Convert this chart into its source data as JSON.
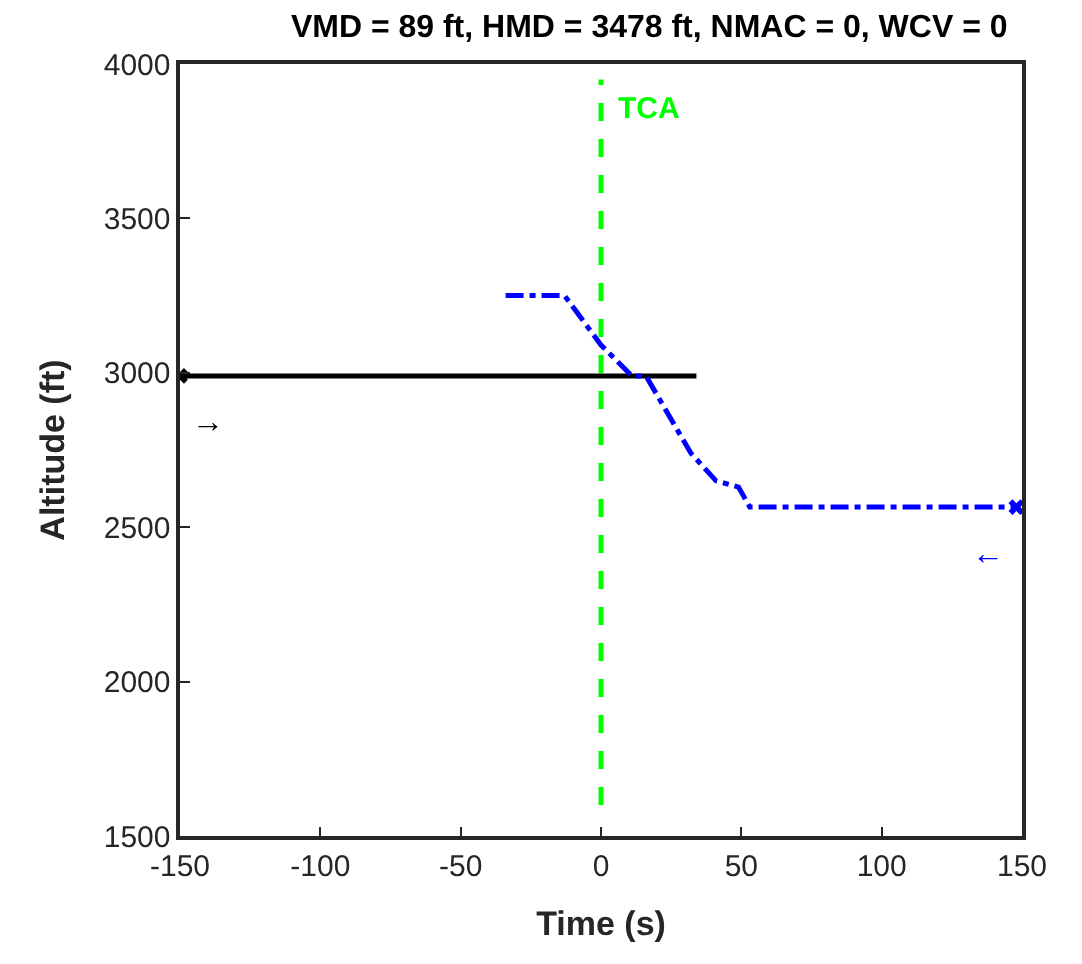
{
  "chart_data": {
    "type": "line",
    "title": "VMD = 89 ft, HMD = 3478 ft, NMAC = 0, WCV = 0",
    "xlabel": "Time (s)",
    "ylabel": "Altitude (ft)",
    "xlim": [
      -150,
      150
    ],
    "xticks": [
      -150,
      -100,
      -50,
      0,
      50,
      100,
      150
    ],
    "ylim": [
      1500,
      4000
    ],
    "yticks": [
      1500,
      2000,
      2500,
      3000,
      3500,
      4000
    ],
    "series": [
      {
        "color": "#000000",
        "line_style": "solid",
        "x": [
          -150,
          34
        ],
        "values": [
          2990,
          2990
        ]
      },
      {
        "color": "#0000ff",
        "line_style": "dashdot",
        "x": [
          -34,
          -13,
          0,
          11,
          16,
          32,
          41,
          49,
          53,
          148
        ],
        "values": [
          3250,
          3250,
          3090,
          2990,
          2990,
          2740,
          2650,
          2630,
          2565,
          2565
        ]
      },
      {
        "type": "scatter",
        "marker": "cross",
        "color": "#000000",
        "x": [
          -150
        ],
        "values": [
          2990
        ]
      },
      {
        "type": "scatter",
        "marker": "cross",
        "color": "#0000ff",
        "x": [
          148
        ],
        "values": [
          2565
        ]
      }
    ],
    "ref_lines": [
      {
        "axis": "x",
        "value": 0,
        "label": "TCA",
        "color": "#00ff00",
        "line_style": "dashed"
      }
    ],
    "annotations": [
      "→",
      "←"
    ]
  }
}
